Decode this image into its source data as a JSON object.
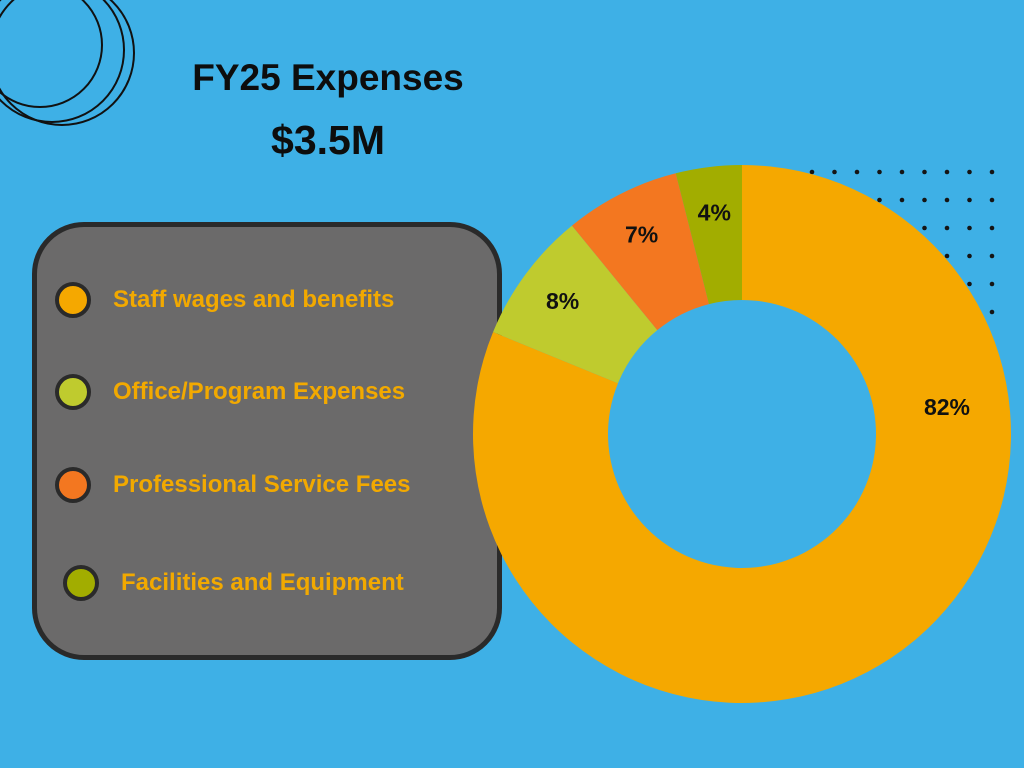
{
  "colors": {
    "background": "#3eb0e6",
    "legend_box": "#6b6a6a",
    "legend_text": "#f2a900",
    "outline": "#2a2a2a"
  },
  "header": {
    "title": "FY25 Expenses",
    "subtitle": "$3.5M"
  },
  "chart_data": {
    "type": "pie",
    "variant": "donut",
    "title": "FY25 Expenses",
    "subtitle": "$3.5M",
    "unit": "%",
    "legend_position": "left",
    "categories": [
      "Staff wages and benefits",
      "Office/Program Expenses",
      "Professional Service Fees",
      "Facilities and Equipment"
    ],
    "values": [
      82,
      8,
      7,
      4
    ],
    "labels": [
      "82%",
      "8%",
      "7%",
      "4%"
    ],
    "colors": [
      "#f5a800",
      "#bfcb2e",
      "#f37720",
      "#a2ad00"
    ]
  }
}
